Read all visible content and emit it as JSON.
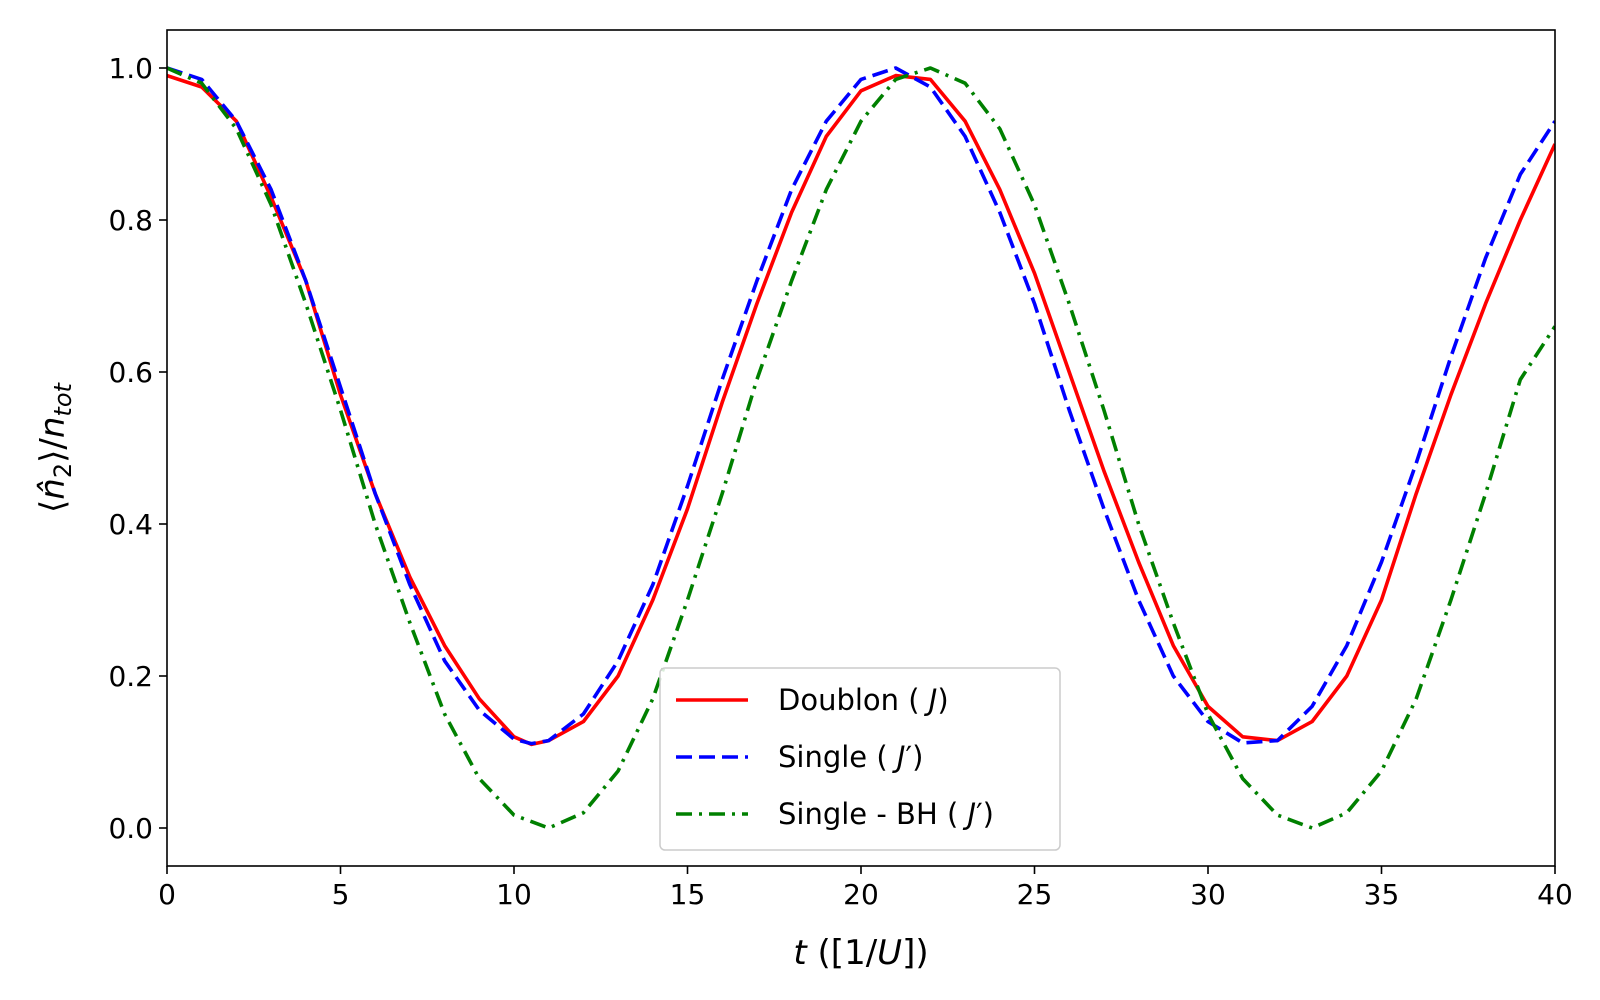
{
  "chart_data": {
    "type": "line",
    "title": "",
    "xlabel": {
      "var": "t",
      "rest": " ([1/",
      "unit": "U",
      "close": "])"
    },
    "ylabel": {
      "open": "⟨",
      "var": "n̂",
      "sub": "2",
      "mid": "⟩/",
      "var2": "n",
      "sub2": "tot"
    },
    "xlim": [
      0,
      40
    ],
    "ylim": [
      -0.05,
      1.05
    ],
    "xticks": [
      "0",
      "5",
      "10",
      "15",
      "20",
      "25",
      "30",
      "35",
      "40"
    ],
    "xtick_values": [
      0,
      5,
      10,
      15,
      20,
      25,
      30,
      35,
      40
    ],
    "yticks": [
      "0.0",
      "0.2",
      "0.4",
      "0.6",
      "0.8",
      "1.0"
    ],
    "ytick_values": [
      0,
      0.2,
      0.4,
      0.6,
      0.8,
      1.0
    ],
    "grid": false,
    "legend_position": "lower-center",
    "series": [
      {
        "name": "Doublon",
        "legend": {
          "pre": "Doublon ( ",
          "sym": "J",
          "prime": "",
          "post": ")"
        },
        "style": "solid",
        "color": "#ff0000",
        "x": [
          0,
          1,
          2,
          3,
          4,
          5,
          6,
          7,
          8,
          9,
          10,
          10.5,
          11,
          12,
          13,
          14,
          15,
          16,
          17,
          18,
          19,
          20,
          21,
          22,
          23,
          24,
          25,
          26,
          27,
          28,
          29,
          30,
          31,
          32,
          33,
          34,
          35,
          36,
          37,
          38,
          39,
          40
        ],
        "y": [
          0.99,
          0.975,
          0.93,
          0.83,
          0.72,
          0.57,
          0.44,
          0.33,
          0.24,
          0.17,
          0.12,
          0.11,
          0.115,
          0.14,
          0.2,
          0.3,
          0.42,
          0.56,
          0.69,
          0.81,
          0.91,
          0.97,
          0.99,
          0.985,
          0.93,
          0.84,
          0.73,
          0.6,
          0.47,
          0.35,
          0.24,
          0.16,
          0.12,
          0.115,
          0.14,
          0.2,
          0.3,
          0.44,
          0.57,
          0.69,
          0.8,
          0.9
        ]
      },
      {
        "name": "Single",
        "legend": {
          "pre": "Single ( ",
          "sym": "J",
          "prime": "′",
          "post": ")"
        },
        "style": "dashed",
        "color": "#0000ff",
        "x": [
          0,
          1,
          2,
          3,
          4,
          5,
          6,
          7,
          8,
          9,
          10,
          10.5,
          11,
          12,
          13,
          14,
          15,
          16,
          17,
          18,
          19,
          20,
          21,
          22,
          23,
          24,
          25,
          26,
          27,
          28,
          29,
          30,
          31,
          32,
          33,
          34,
          35,
          36,
          37,
          38,
          39,
          40
        ],
        "y": [
          1.0,
          0.985,
          0.93,
          0.84,
          0.72,
          0.58,
          0.44,
          0.32,
          0.22,
          0.155,
          0.117,
          0.111,
          0.115,
          0.15,
          0.22,
          0.32,
          0.45,
          0.59,
          0.72,
          0.84,
          0.93,
          0.985,
          1.0,
          0.975,
          0.91,
          0.81,
          0.69,
          0.55,
          0.42,
          0.3,
          0.2,
          0.14,
          0.112,
          0.115,
          0.16,
          0.24,
          0.35,
          0.48,
          0.62,
          0.75,
          0.86,
          0.93
        ]
      },
      {
        "name": "Single - BH",
        "legend": {
          "pre": "Single - BH ( ",
          "sym": "J",
          "prime": "′",
          "post": ")"
        },
        "style": "dashdot",
        "color": "#008000",
        "x": [
          0,
          1,
          2,
          3,
          4,
          5,
          6,
          7,
          8,
          9,
          10,
          11,
          12,
          13,
          14,
          15,
          16,
          17,
          18,
          19,
          20,
          21,
          22,
          23,
          24,
          25,
          26,
          27,
          28,
          29,
          30,
          31,
          32,
          33,
          34,
          35,
          36,
          37,
          38,
          39,
          40
        ],
        "y": [
          1.0,
          0.98,
          0.92,
          0.82,
          0.69,
          0.55,
          0.4,
          0.27,
          0.15,
          0.065,
          0.017,
          0.0,
          0.02,
          0.075,
          0.17,
          0.3,
          0.44,
          0.59,
          0.72,
          0.84,
          0.93,
          0.985,
          1.0,
          0.98,
          0.92,
          0.82,
          0.69,
          0.55,
          0.4,
          0.27,
          0.15,
          0.065,
          0.017,
          0.0,
          0.02,
          0.075,
          0.17,
          0.3,
          0.44,
          0.59,
          0.66
        ]
      }
    ]
  }
}
